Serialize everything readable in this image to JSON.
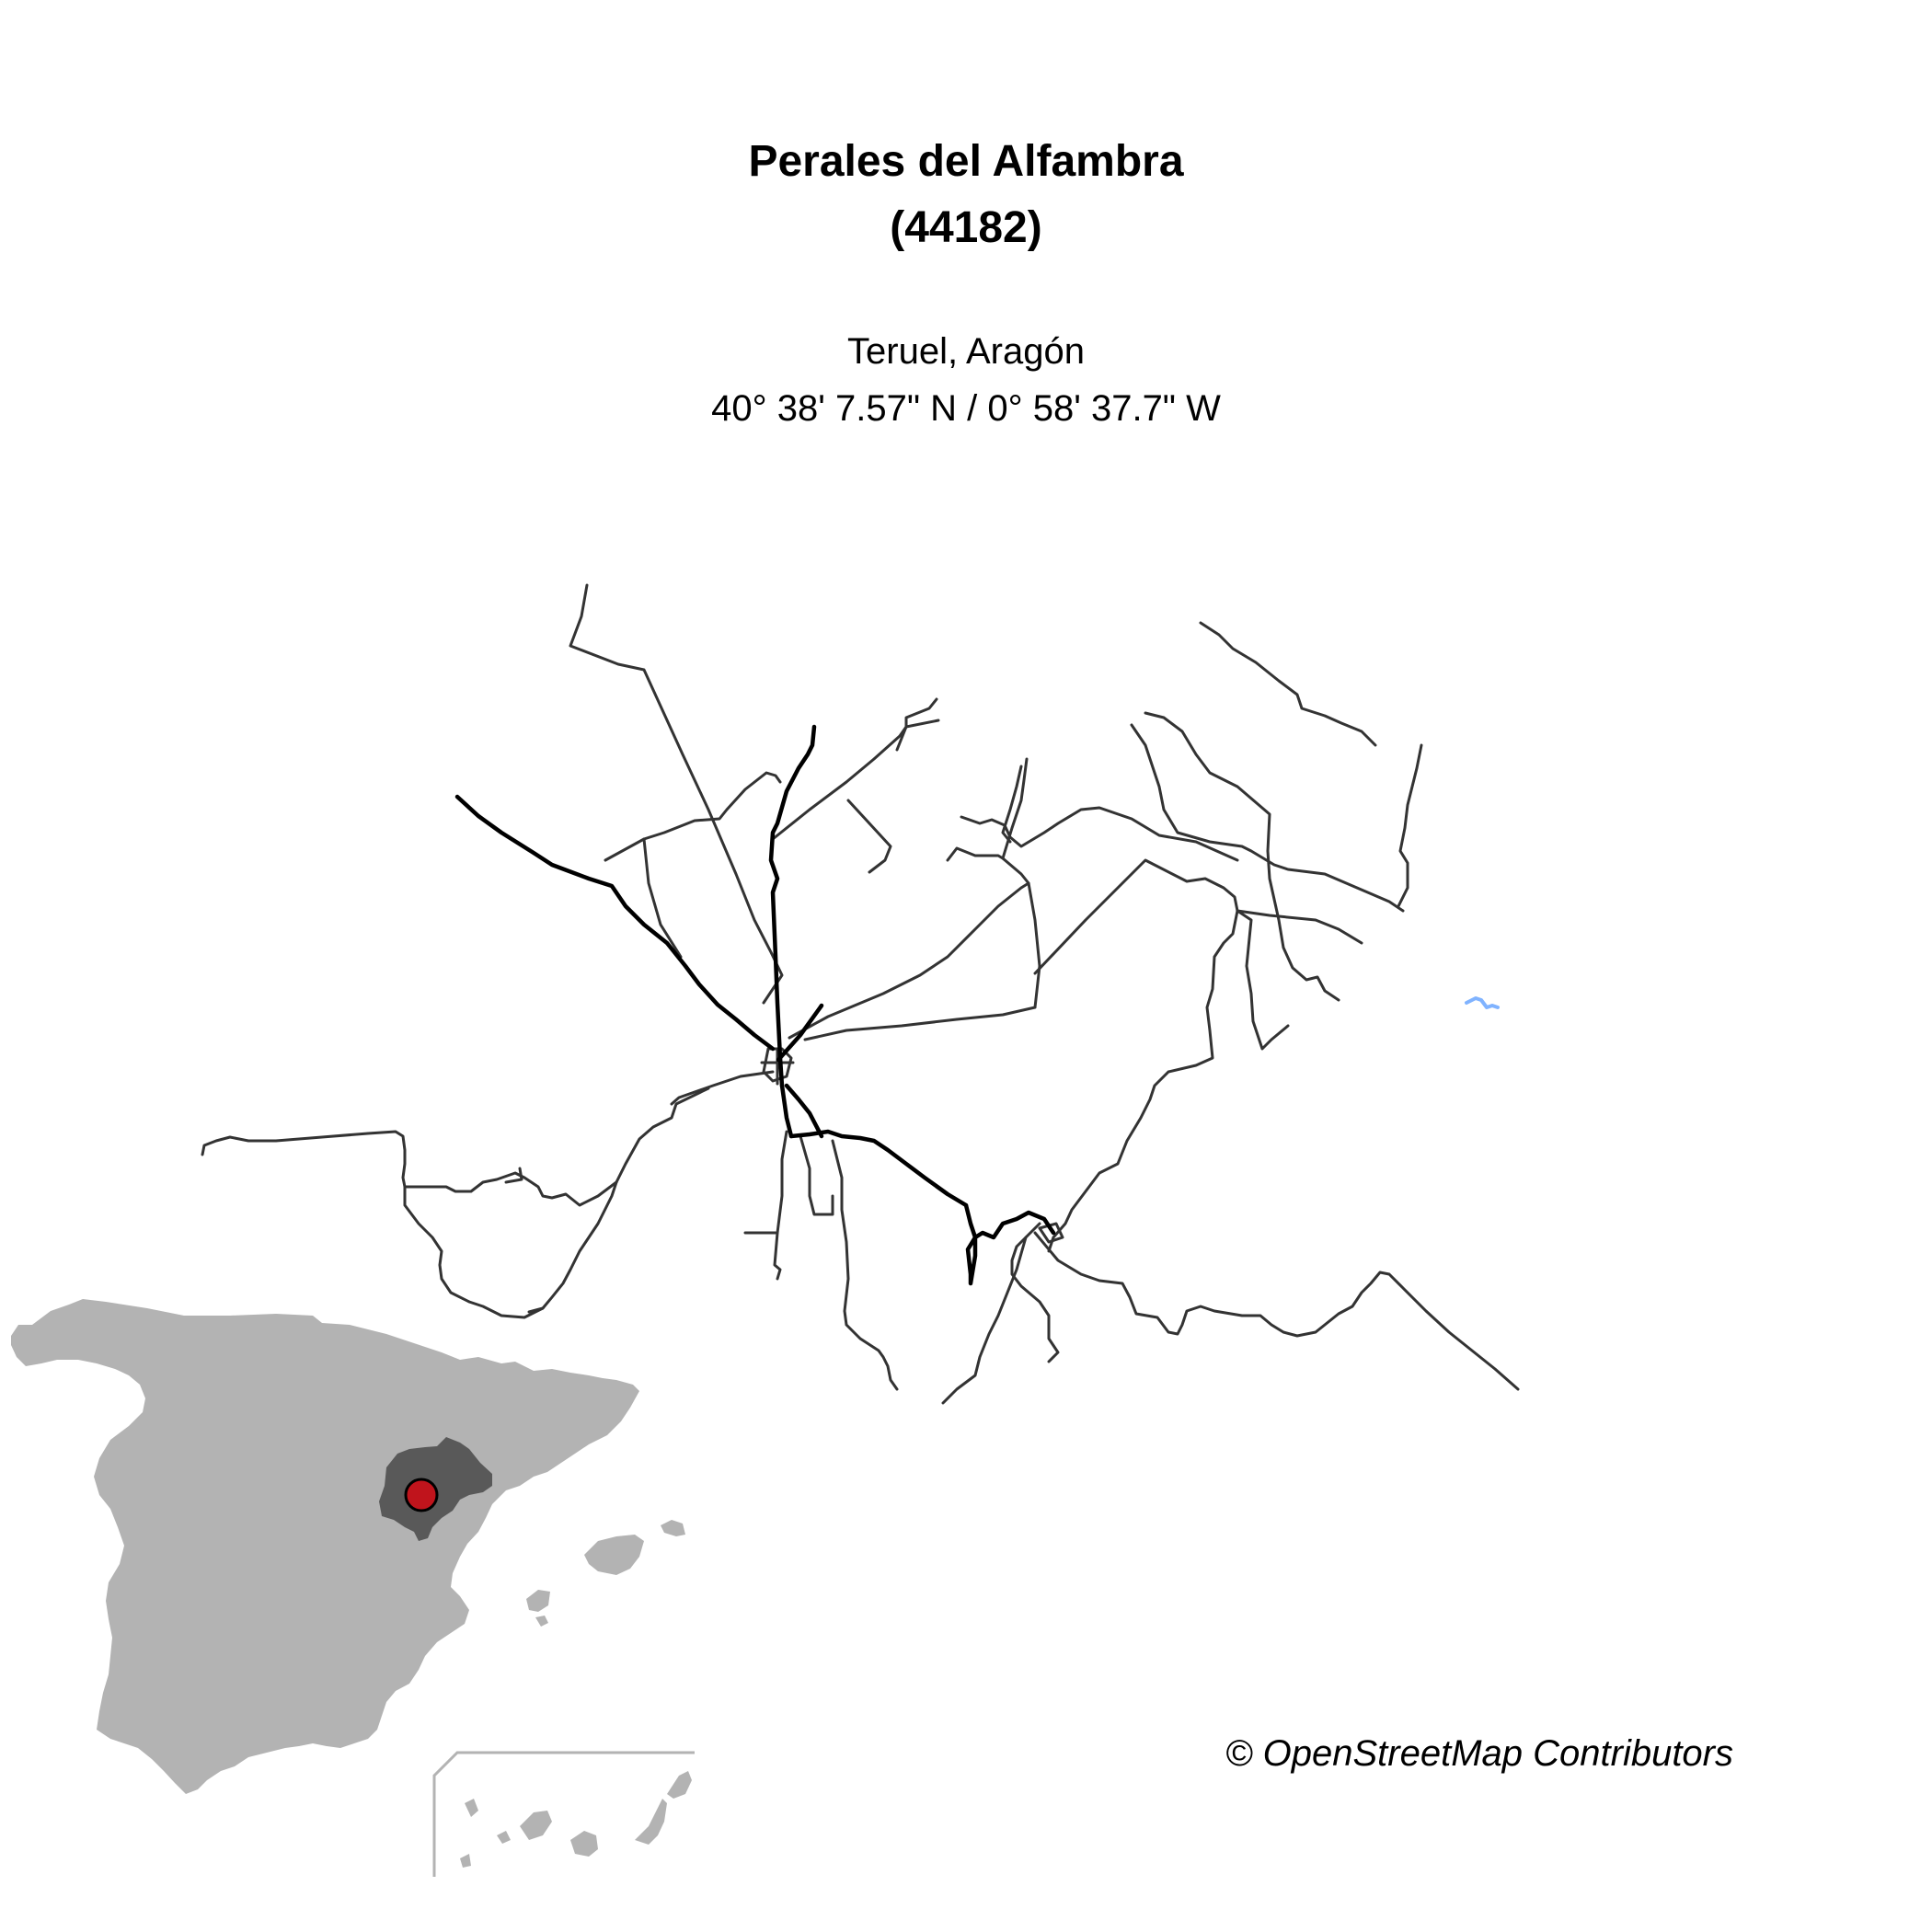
{
  "map": {
    "title": "Perales del Alfambra",
    "code": "(44182)",
    "region": "Teruel, Aragón",
    "coordinates": "40° 38' 7.57\" N / 0° 58' 37.7\" W",
    "credit": "© OpenStreetMap Contributors"
  },
  "colors": {
    "background": "#ffffff",
    "major_road": "#000000",
    "minor_road": "#333333",
    "water": "#80b3ff",
    "country_fill": "#b3b3b3",
    "province_fill": "#595959",
    "marker": "#c0141c",
    "inset_frame": "#b3b3b3"
  }
}
